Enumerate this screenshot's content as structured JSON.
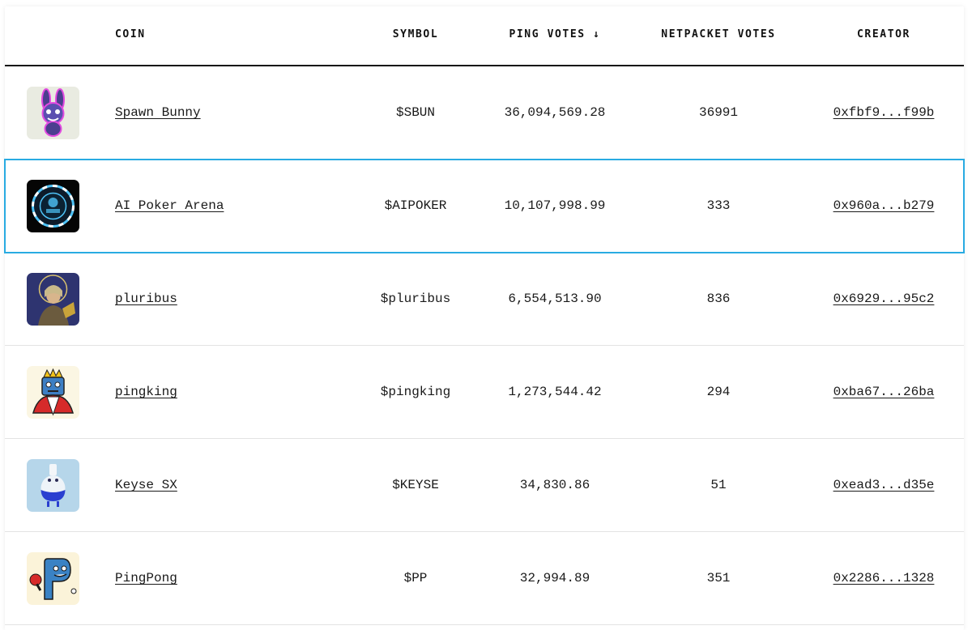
{
  "table": {
    "headers": {
      "coin": "COIN",
      "symbol": "SYMBOL",
      "ping_votes": "PING VOTES ↓",
      "netpacket_votes": "NETPACKET VOTES",
      "creator": "CREATOR"
    },
    "selected_row": 1,
    "accent_color": "#29abe2",
    "rows": [
      {
        "icon": "spawn-bunny-icon",
        "name": "Spawn Bunny",
        "symbol": "$SBUN",
        "ping_votes": "36,094,569.28",
        "netpacket_votes": "36991",
        "creator": "0xfbf9...f99b"
      },
      {
        "icon": "ai-poker-arena-icon",
        "name": "AI Poker Arena",
        "symbol": "$AIPOKER",
        "ping_votes": "10,107,998.99",
        "netpacket_votes": "333",
        "creator": "0x960a...b279"
      },
      {
        "icon": "pluribus-icon",
        "name": "pluribus",
        "symbol": "$pluribus",
        "ping_votes": "6,554,513.90",
        "netpacket_votes": "836",
        "creator": "0x6929...95c2"
      },
      {
        "icon": "pingking-icon",
        "name": "pingking",
        "symbol": "$pingking",
        "ping_votes": "1,273,544.42",
        "netpacket_votes": "294",
        "creator": "0xba67...26ba"
      },
      {
        "icon": "keyse-sx-icon",
        "name": "Keyse SX",
        "symbol": "$KEYSE",
        "ping_votes": "34,830.86",
        "netpacket_votes": "51",
        "creator": "0xead3...d35e"
      },
      {
        "icon": "pingpong-icon",
        "name": "PingPong",
        "symbol": "$PP",
        "ping_votes": "32,994.89",
        "netpacket_votes": "351",
        "creator": "0x2286...1328"
      }
    ]
  }
}
